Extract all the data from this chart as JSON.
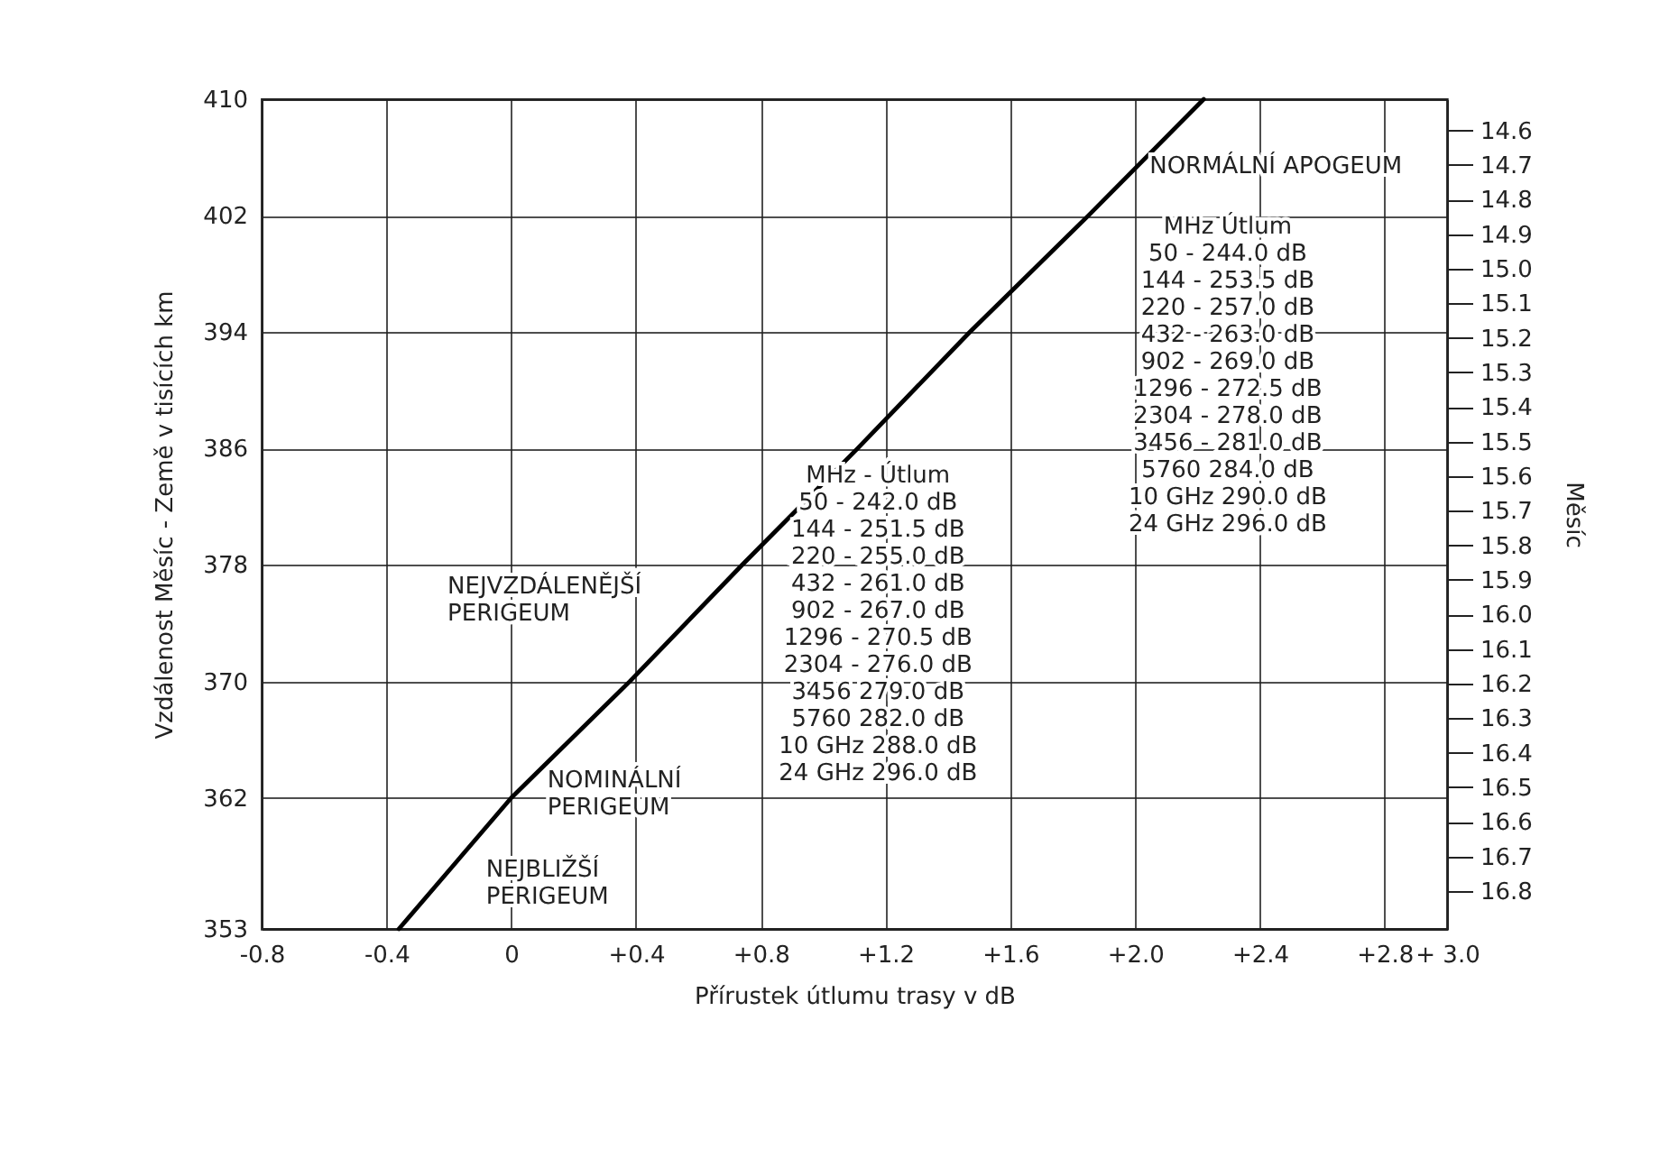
{
  "chart_data": {
    "type": "line",
    "xlabel": "Přírustek útlumu trasy v dB",
    "ylabel": "Vzdálenost  Měsíc - Země v tisících  km",
    "y2label": "Měsíc",
    "series": [
      {
        "color": "#000000",
        "x": [
          -0.36,
          0.0,
          0.38,
          0.74,
          1.11,
          1.47,
          1.85,
          2.22
        ],
        "values": [
          353,
          362,
          370,
          378,
          386,
          394,
          402,
          410
        ]
      }
    ],
    "xlim": [
      -0.8,
      3.0
    ],
    "xticks": [
      {
        "value": -0.8,
        "label": "-0.8"
      },
      {
        "value": -0.4,
        "label": "-0.4"
      },
      {
        "value": 0,
        "label": "0"
      },
      {
        "value": 0.4,
        "label": "+0.4"
      },
      {
        "value": 0.8,
        "label": "+0.8"
      },
      {
        "value": 1.2,
        "label": "+1.2"
      },
      {
        "value": 1.6,
        "label": "+1.6"
      },
      {
        "value": 2.0,
        "label": "+2.0"
      },
      {
        "value": 2.4,
        "label": "+2.4"
      },
      {
        "value": 2.8,
        "label": "+2.8"
      },
      {
        "value": 3.0,
        "label": "+ 3.0"
      }
    ],
    "ylim": [
      353,
      410
    ],
    "yticks": [
      353,
      362,
      370,
      378,
      386,
      394,
      402,
      410
    ],
    "y2lim": [
      16.91,
      14.51
    ],
    "y2ticks": [
      14.6,
      14.7,
      14.8,
      14.9,
      {
        "value": 15,
        "label": "15.0"
      },
      15.1,
      15.2,
      15.3,
      15.4,
      15.5,
      15.6,
      15.7,
      15.8,
      15.9,
      {
        "value": 16,
        "label": "16.0"
      },
      16.1,
      16.2,
      16.3,
      16.4,
      16.5,
      16.6,
      16.7,
      16.8
    ],
    "grid": true,
    "annotations": [
      {
        "text": "NORMÁLNÍ APOGEUM",
        "x": 2.0,
        "y": 405.4
      },
      {
        "text": "NEJVZDÁLENĚJŠÍ\nPERIGEUM",
        "x": 0.49,
        "y": 372.8
      },
      {
        "text": "NOMINÁLNÍ\nPERIGEUM",
        "x": 0.0,
        "y": 362
      },
      {
        "text": "NEJBLIŽŠÍ\nPERIGEUM",
        "x": -0.15,
        "y": 358.3
      },
      "MHz     Útlum\n\n50  -  244.0 dB\n144  -  253.5 dB\n220  -  257.0 dB\n432  -  263.0 dB\n902  -  269.0 dB\n1296  -  272.5 dB\n2304  -  278.0 dB\n3456  -  281.0 dB\n5760      284.0 dB\n10 GHz  290.0 dB\n24 GHz  296.0 dB",
      "MHz - Útlum\n\n50  -  242.0 dB\n144  -  251.5 dB\n220  -  255.0 dB\n432  -  261.0 dB\n902  -  267.0 dB\n1296  -  270.5 dB\n2304  -  276.0 dB\n3456      279.0 dB\n5760      282.0 dB\n10 GHz  288.0 dB\n24 GHz  296.0 dB"
    ]
  }
}
